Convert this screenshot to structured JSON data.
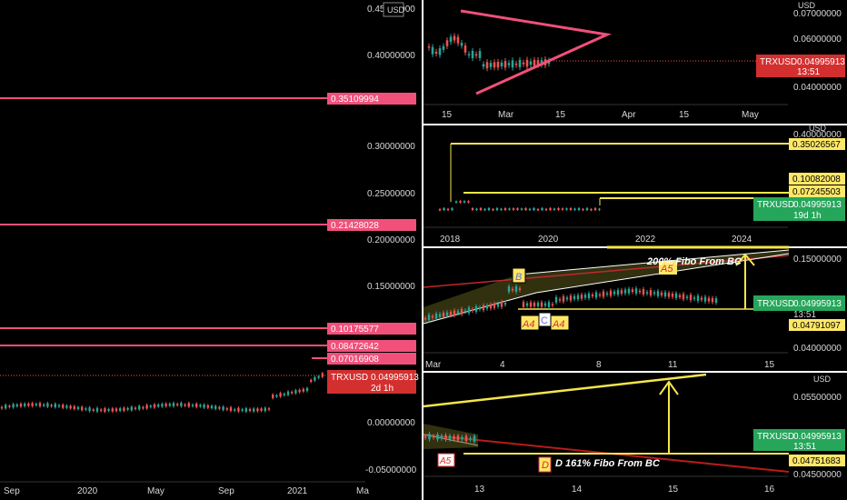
{
  "colors": {
    "bg": "#000000",
    "axis_text": "#d8d8d8",
    "up": "#26a69a",
    "down": "#ef5350",
    "pink": "#f0507a",
    "price_red": "#d32f2f",
    "green_label": "#26a65b",
    "yellow": "#f5e64a",
    "label_fill": "#ffe866",
    "dark_red": "#b81b1b"
  },
  "chart_data": [
    {
      "id": "main",
      "type": "candlestick",
      "currency_label": "USD",
      "y_ticks": [
        "0.45000000",
        "0.40000000",
        "0.30000000",
        "0.25000000",
        "0.20000000",
        "0.15000000",
        "0.05000000",
        "0.00000000",
        "-0.05000000"
      ],
      "ylim": [
        -0.055,
        0.455
      ],
      "x_ticks": [
        "Sep",
        "2020",
        "May",
        "Sep",
        "2021",
        "Ma"
      ],
      "hlines": [
        {
          "value": 0.35109994,
          "label": "0.35109994"
        },
        {
          "value": 0.21428028,
          "label": "0.21428028"
        },
        {
          "value": 0.10175577,
          "label": "0.10175577"
        },
        {
          "value": 0.08472642,
          "label": "0.08472642"
        },
        {
          "value": 0.07016908,
          "label": "0.07016908"
        }
      ],
      "price_tag": {
        "symbol": "TRXUSD",
        "value": "0.04995913",
        "countdown": "2d 1h"
      }
    },
    {
      "id": "top_right",
      "type": "candlestick",
      "currency_label": "USD",
      "y_ticks": [
        "0.07000000",
        "0.06000000",
        "0.04000000"
      ],
      "x_ticks": [
        "15",
        "Mar",
        "15",
        "Apr",
        "15",
        "May"
      ],
      "annotation": "symmetrical triangle",
      "price_tag": {
        "symbol": "TRXUSD",
        "value": "0.04995913",
        "countdown": "13:51"
      }
    },
    {
      "id": "mid_right",
      "type": "candlestick",
      "currency_label": "USD",
      "y_ticks": [
        "0.40000000"
      ],
      "x_ticks": [
        "2018",
        "2020",
        "2022",
        "2024"
      ],
      "hlines": [
        {
          "value": 0.35026567,
          "label": "0.35026567"
        },
        {
          "value": 0.10082008,
          "label": "0.10082008"
        },
        {
          "value": 0.07245503,
          "label": "0.07245503"
        }
      ],
      "price_tag": {
        "symbol": "TRXUSD",
        "value": "0.04995913",
        "countdown": "19d 1h"
      }
    },
    {
      "id": "harmonic",
      "type": "candlestick",
      "y_ticks": [
        "0.15000000",
        "0.05000000",
        "0.04000000"
      ],
      "x_ticks": [
        "Mar",
        "4",
        "8",
        "11",
        "15"
      ],
      "labels": {
        "b": "B",
        "a4_left": "A4",
        "c": "C",
        "a4_right": "A4",
        "a5": "A5",
        "fibo": "200% Fibo From BC"
      },
      "hlines": [
        {
          "value": 0.04791097,
          "label": "0.04791097"
        }
      ],
      "price_tag": {
        "symbol": "TRXUSD",
        "value": "0.04995913",
        "countdown": "13:51"
      }
    },
    {
      "id": "zoom",
      "type": "candlestick",
      "currency_label": "USD",
      "y_ticks": [
        "0.05500000",
        "0.04500000"
      ],
      "x_ticks": [
        "13",
        "14",
        "15",
        "16"
      ],
      "labels": {
        "a5": "A5",
        "d": "D",
        "fibo": "D 161% Fibo From BC"
      },
      "hlines": [
        {
          "value": 0.04751683,
          "label": "0.04751683"
        }
      ],
      "price_tag": {
        "symbol": "TRXUSD",
        "value": "0.04995913",
        "countdown": "13:51"
      }
    }
  ]
}
